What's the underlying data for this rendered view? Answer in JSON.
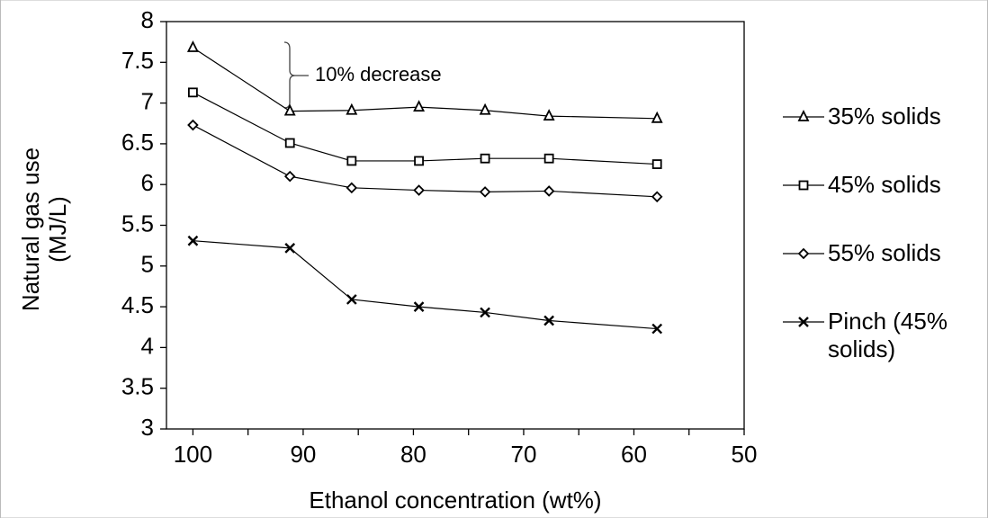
{
  "chart_data": {
    "type": "line",
    "xlabel": "Ethanol concentration (wt%)",
    "ylabel": "Natural gas use (MJ/L)",
    "annotation": "10% decrease",
    "xlim": [
      102.4,
      50
    ],
    "xticks": [
      100,
      90,
      80,
      70,
      60,
      50
    ],
    "ylim": [
      3,
      8
    ],
    "yticks": [
      3,
      3.5,
      4,
      4.5,
      5,
      5.5,
      6,
      6.5,
      7,
      7.5,
      8
    ],
    "grid": false,
    "legend": "right",
    "x": [
      100,
      91.2,
      85.6,
      79.5,
      73.5,
      67.7,
      57.9
    ],
    "series": [
      {
        "name": "35% solids",
        "color": "#000000",
        "marker": "triangle",
        "values": [
          7.68,
          6.9,
          6.91,
          6.95,
          6.91,
          6.84,
          6.81
        ]
      },
      {
        "name": "45% solids",
        "color": "#000000",
        "marker": "square",
        "values": [
          7.13,
          6.51,
          6.29,
          6.29,
          6.32,
          6.32,
          6.25
        ]
      },
      {
        "name": "55% solids",
        "color": "#000000",
        "marker": "diamond",
        "values": [
          6.73,
          6.1,
          5.96,
          5.93,
          5.91,
          5.92,
          5.85
        ]
      },
      {
        "name": "Pinch (45% solids)",
        "color": "#000000",
        "marker": "cross",
        "values": [
          5.31,
          5.22,
          4.59,
          4.5,
          4.43,
          4.33,
          4.23
        ]
      }
    ]
  }
}
